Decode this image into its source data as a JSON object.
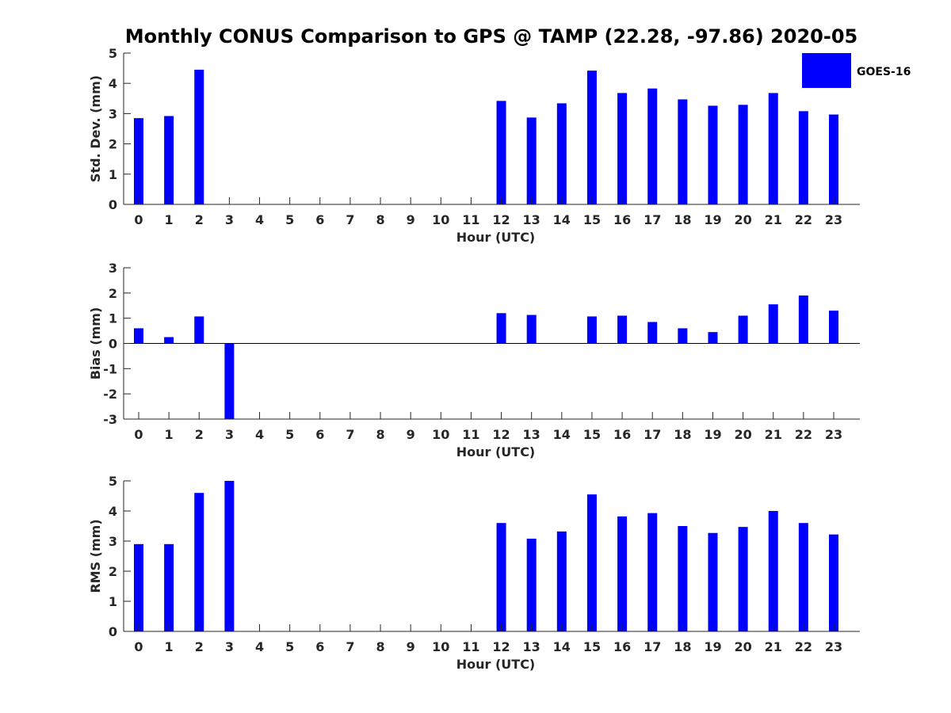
{
  "title": "Monthly CONUS Comparison to GPS @ TAMP (22.28, -97.86) 2020-05",
  "bar_color": "#0000ff",
  "chart_data": [
    {
      "type": "bar",
      "title": "Monthly CONUS Comparison to GPS @ TAMP (22.28, -97.86) 2020-05",
      "xlabel": "Hour (UTC)",
      "ylabel": "Std. Dev. (mm)",
      "ylim": [
        0,
        5
      ],
      "yticks": [
        "0",
        "1",
        "2",
        "3",
        "4",
        "5"
      ],
      "categories": [
        "0",
        "1",
        "2",
        "3",
        "4",
        "5",
        "6",
        "7",
        "8",
        "9",
        "10",
        "11",
        "12",
        "13",
        "14",
        "15",
        "16",
        "17",
        "18",
        "19",
        "20",
        "21",
        "22",
        "23"
      ],
      "legend": {
        "position": "top-right",
        "entries": [
          "GOES-16"
        ]
      },
      "series": [
        {
          "name": "GOES-16",
          "values": [
            2.85,
            2.92,
            4.45,
            null,
            null,
            null,
            null,
            null,
            null,
            null,
            null,
            null,
            3.42,
            2.87,
            3.34,
            4.42,
            3.68,
            3.83,
            3.47,
            3.26,
            3.29,
            3.68,
            3.08,
            2.97
          ]
        }
      ]
    },
    {
      "type": "bar",
      "xlabel": "Hour (UTC)",
      "ylabel": "Bias (mm)",
      "ylim": [
        -3,
        3
      ],
      "yticks": [
        "-3",
        "-2",
        "-1",
        "0",
        "1",
        "2",
        "3"
      ],
      "zero_line": true,
      "categories": [
        "0",
        "1",
        "2",
        "3",
        "4",
        "5",
        "6",
        "7",
        "8",
        "9",
        "10",
        "11",
        "12",
        "13",
        "14",
        "15",
        "16",
        "17",
        "18",
        "19",
        "20",
        "21",
        "22",
        "23"
      ],
      "series": [
        {
          "name": "GOES-16",
          "values": [
            0.6,
            0.25,
            1.07,
            -3.0,
            null,
            null,
            null,
            null,
            null,
            null,
            null,
            null,
            1.2,
            1.13,
            null,
            1.07,
            1.1,
            0.85,
            0.6,
            0.45,
            1.1,
            1.55,
            1.9,
            1.3
          ]
        }
      ]
    },
    {
      "type": "bar",
      "xlabel": "Hour (UTC)",
      "ylabel": "RMS (mm)",
      "ylim": [
        0,
        5
      ],
      "yticks": [
        "0",
        "1",
        "2",
        "3",
        "4",
        "5"
      ],
      "categories": [
        "0",
        "1",
        "2",
        "3",
        "4",
        "5",
        "6",
        "7",
        "8",
        "9",
        "10",
        "11",
        "12",
        "13",
        "14",
        "15",
        "16",
        "17",
        "18",
        "19",
        "20",
        "21",
        "22",
        "23"
      ],
      "series": [
        {
          "name": "GOES-16",
          "values": [
            2.9,
            2.9,
            4.6,
            5.0,
            null,
            null,
            null,
            null,
            null,
            null,
            null,
            null,
            3.6,
            3.08,
            3.32,
            4.55,
            3.82,
            3.93,
            3.5,
            3.27,
            3.47,
            4.0,
            3.6,
            3.22
          ]
        }
      ]
    }
  ]
}
